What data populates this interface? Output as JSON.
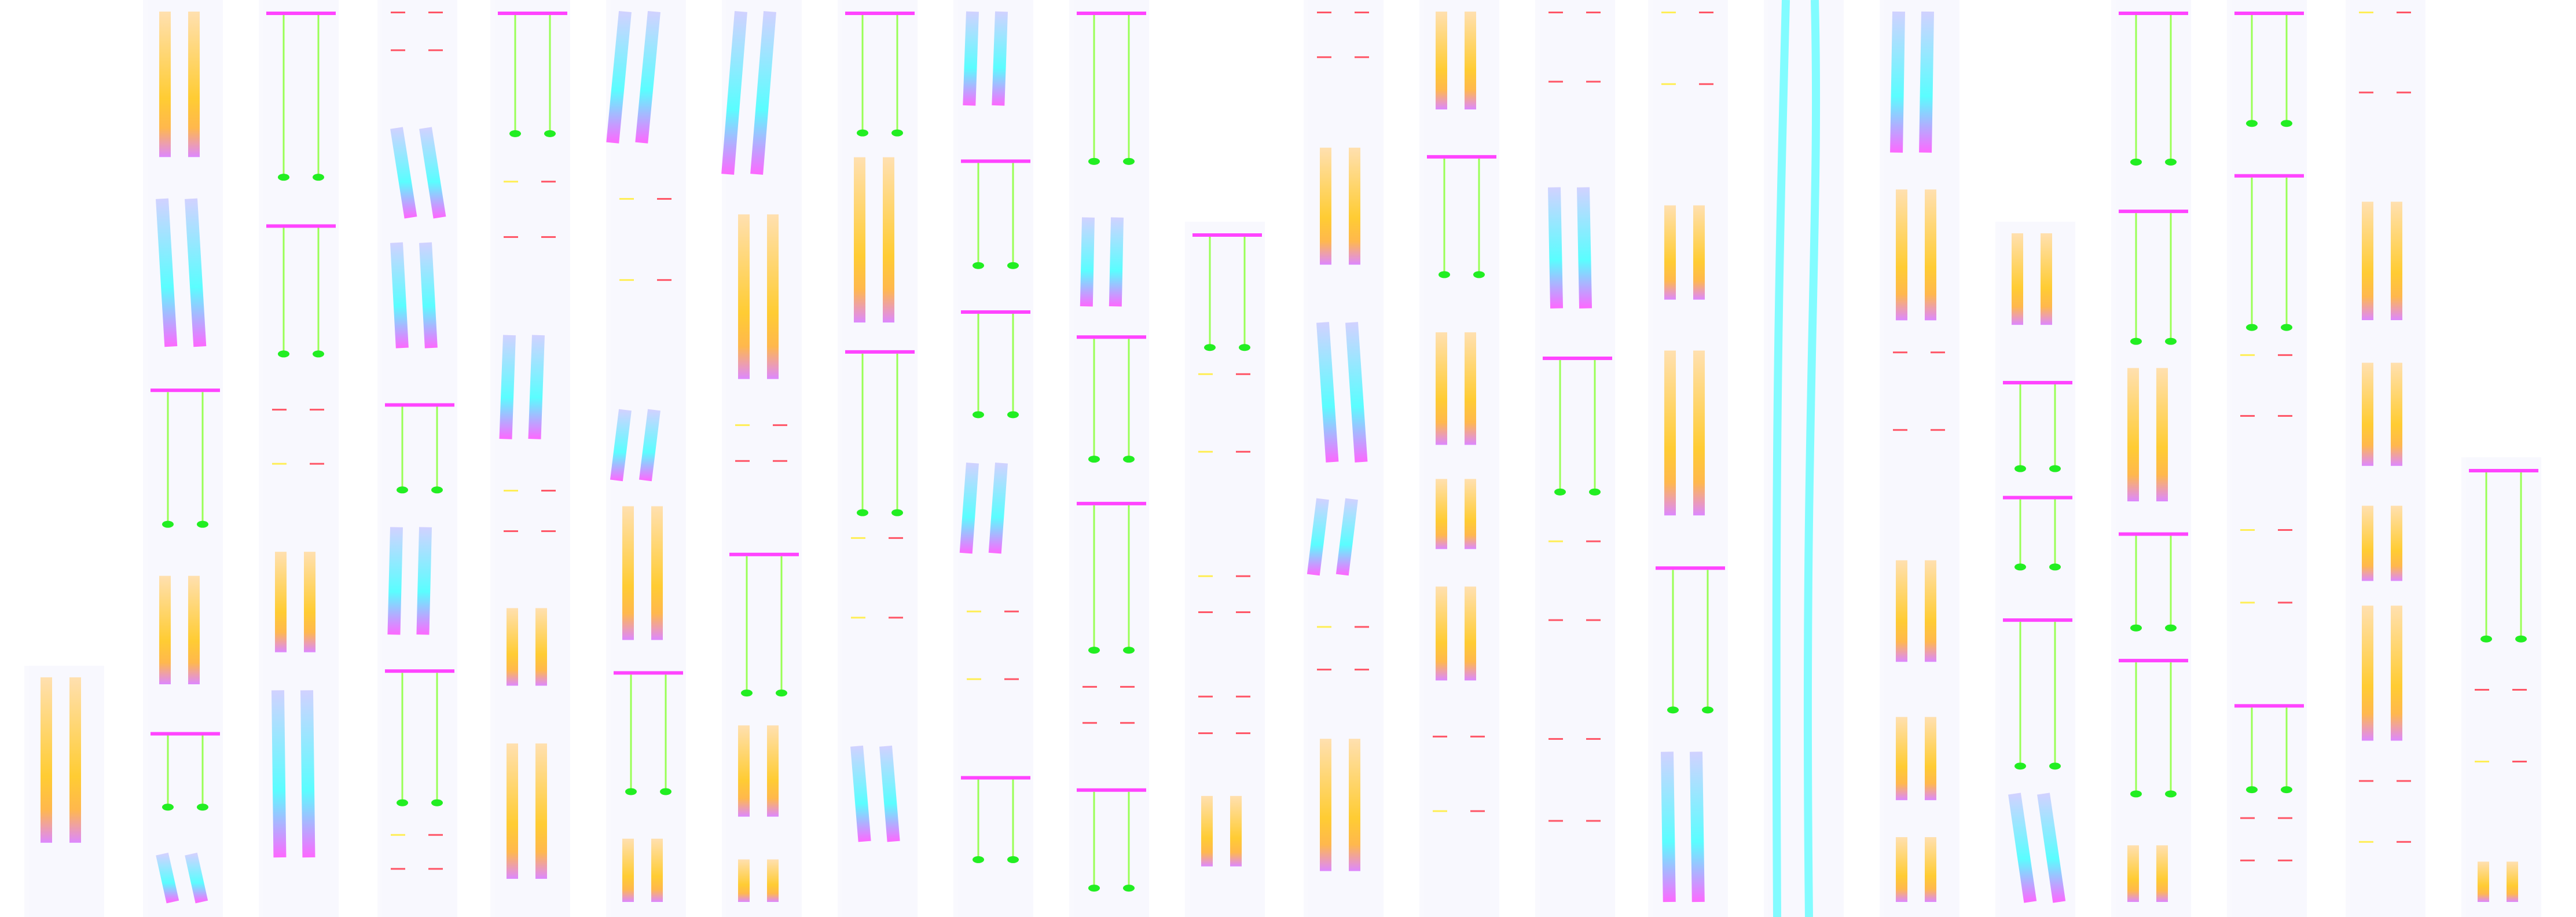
{
  "palette": {
    "background": "#ffffff",
    "panel": "#f8f8fe",
    "cyan": "#33ffff",
    "periwinkle": "#9aa8ff",
    "magenta": "#ff44ff",
    "pink": "#ff66cc",
    "green": "#22ee22",
    "lime": "#99ff55",
    "orange": "#ffb84d",
    "yellow": "#ffee55",
    "red": "#ff5566",
    "violet": "#bb66ff"
  },
  "motif_types": [
    "gradient-bar-pair",
    "cyan-strand-pair",
    "green-stand-pair",
    "dash-marks",
    "long-cyan-ribbon"
  ]
}
